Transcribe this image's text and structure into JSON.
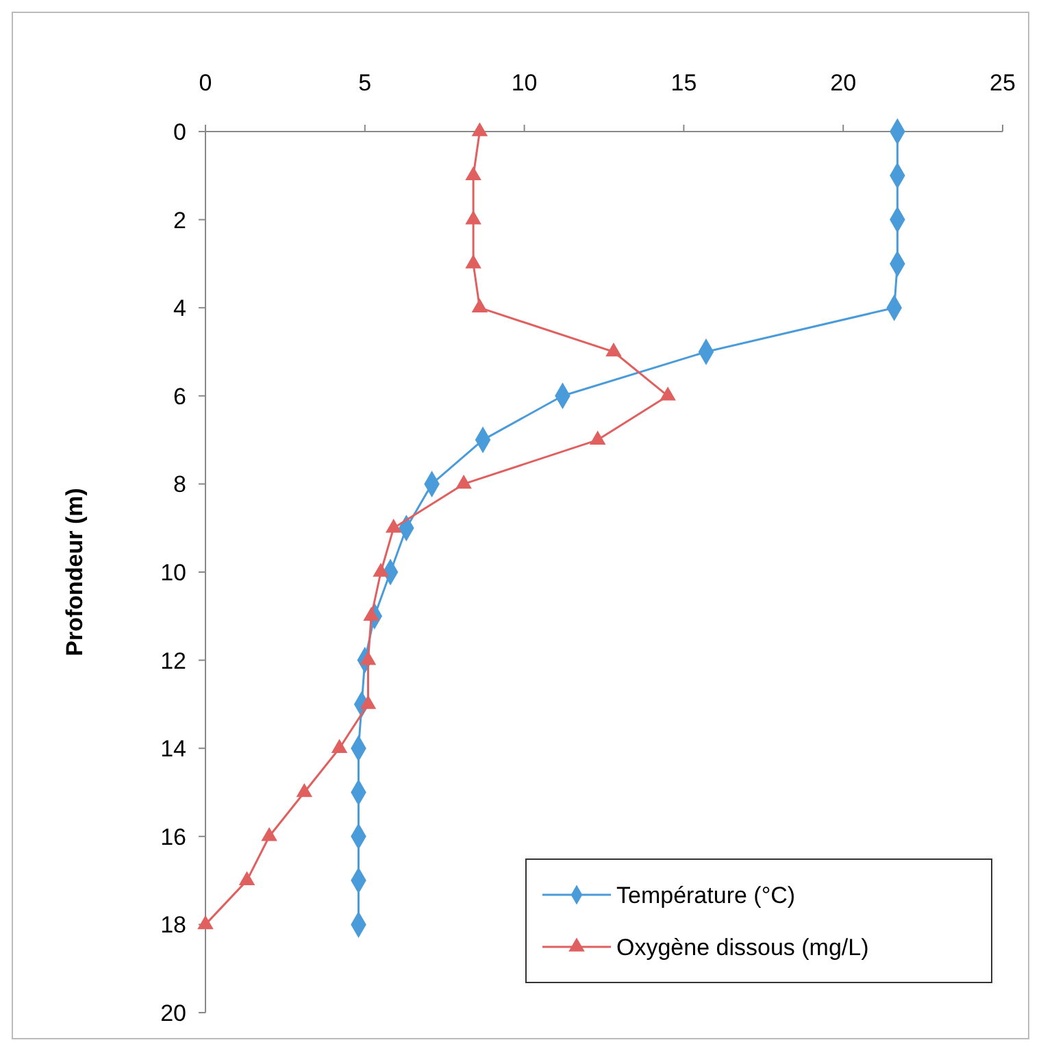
{
  "chart_data": {
    "type": "line",
    "ylabel": "Profondeur (m)",
    "xlim": [
      0,
      25
    ],
    "xticks": [
      0,
      5,
      10,
      15,
      20,
      25
    ],
    "ylim": [
      20,
      0
    ],
    "yticks": [
      0,
      2,
      4,
      6,
      8,
      10,
      12,
      14,
      16,
      18,
      20
    ],
    "grid": false,
    "legend": "bottom right",
    "series": [
      {
        "name": "Température (°C)",
        "color": "#4a9bd9",
        "marker": "diamond",
        "x": [
          21.7,
          21.7,
          21.7,
          21.7,
          21.6,
          15.7,
          11.2,
          8.7,
          7.1,
          6.3,
          5.8,
          5.3,
          5.0,
          4.9,
          4.8,
          4.8,
          4.8,
          4.8,
          4.8
        ],
        "values": [
          0,
          1,
          2,
          3,
          4,
          5,
          6,
          7,
          8,
          9,
          10,
          11,
          12,
          13,
          14,
          15,
          16,
          17,
          18
        ]
      },
      {
        "name": "Oxygène dissous (mg/L)",
        "color": "#e06060",
        "marker": "triangle",
        "x": [
          8.6,
          8.4,
          8.4,
          8.4,
          8.6,
          12.8,
          14.5,
          12.3,
          8.1,
          5.9,
          5.5,
          5.2,
          5.1,
          5.1,
          4.2,
          3.1,
          2.0,
          1.3,
          0
        ],
        "values": [
          0,
          1,
          2,
          3,
          4,
          5,
          6,
          7,
          8,
          9,
          10,
          11,
          12,
          13,
          14,
          15,
          16,
          17,
          18
        ]
      }
    ]
  }
}
